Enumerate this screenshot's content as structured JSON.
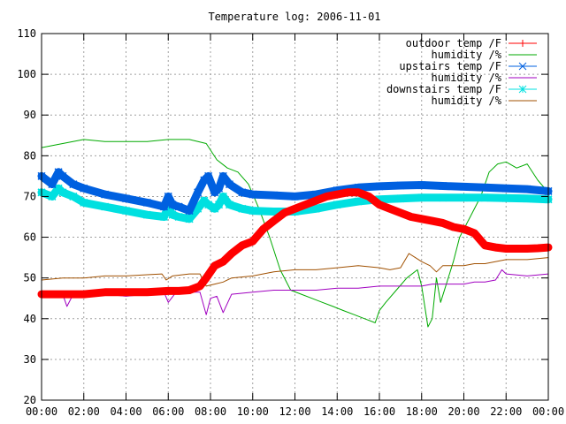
{
  "chart_data": {
    "type": "line",
    "title": "Temperature log: 2006-11-01",
    "xlabel": "",
    "ylabel": "",
    "xlim": [
      0,
      24
    ],
    "ylim": [
      20,
      110
    ],
    "grid": true,
    "legend_position": "top-right",
    "x_tick_labels": [
      "00:00",
      "02:00",
      "04:00",
      "06:00",
      "08:00",
      "10:00",
      "12:00",
      "14:00",
      "16:00",
      "18:00",
      "20:00",
      "22:00",
      "00:00"
    ],
    "y_tick_labels": [
      "20",
      "30",
      "40",
      "50",
      "60",
      "70",
      "80",
      "90",
      "100",
      "110"
    ],
    "series": [
      {
        "name": "outdoor temp /F",
        "color": "#ff0000",
        "marker": "plus",
        "x": [
          0,
          1,
          2,
          3,
          4,
          5,
          6,
          6.5,
          7,
          7.5,
          7.8,
          8.2,
          8.6,
          9,
          9.5,
          10,
          10.5,
          11,
          11.5,
          12,
          12.5,
          13,
          13.5,
          14,
          14.5,
          15,
          15.5,
          16,
          16.5,
          17,
          17.5,
          18,
          18.5,
          19,
          19.5,
          20,
          20.5,
          21,
          21.5,
          22,
          22.5,
          23,
          23.5,
          24
        ],
        "values": [
          46,
          46,
          46,
          46.5,
          46.5,
          46.5,
          46.8,
          46.8,
          47,
          48,
          50,
          53,
          54,
          56,
          58,
          59,
          62,
          64,
          66,
          67,
          68,
          69,
          70,
          70.5,
          71,
          71,
          70,
          68,
          67,
          66,
          65,
          64.5,
          64,
          63.5,
          62.5,
          62,
          61,
          58,
          57.5,
          57.2,
          57.2,
          57.2,
          57.3,
          57.5
        ]
      },
      {
        "name": "humidity /%",
        "color": "#00aa00",
        "x": [
          0,
          1,
          2,
          3,
          4,
          5,
          6,
          7,
          7.8,
          8.3,
          8.8,
          9.3,
          9.8,
          10.3,
          10.8,
          11.3,
          11.8,
          12.3,
          12.8,
          13.3,
          13.8,
          14.3,
          14.8,
          15.3,
          15.8,
          16,
          16.3,
          16.8,
          17.3,
          17.8,
          18,
          18.3,
          18.5,
          18.7,
          18.9,
          19.2,
          19.5,
          19.8,
          20.3,
          20.8,
          21.2,
          21.6,
          22,
          22.5,
          23,
          23.5,
          24
        ],
        "values": [
          82,
          83,
          84,
          83.5,
          83.5,
          83.5,
          84,
          84,
          83,
          79,
          77,
          76,
          73,
          67,
          60,
          52,
          47,
          46,
          45,
          44,
          43,
          42,
          41,
          40,
          39,
          42,
          44,
          47,
          50,
          52,
          48,
          38,
          40,
          50,
          44,
          49,
          54,
          60,
          65,
          70,
          76,
          78,
          78.5,
          77,
          78,
          74,
          71
        ]
      },
      {
        "name": "upstairs temp /F",
        "color": "#0060e0",
        "marker": "cross",
        "x": [
          0,
          0.5,
          0.8,
          1,
          1.5,
          2,
          3,
          4,
          5,
          5.8,
          6,
          6.2,
          6.5,
          7,
          7.4,
          7.7,
          7.9,
          8.2,
          8.4,
          8.6,
          8.9,
          9.5,
          10,
          11,
          12,
          13,
          14,
          15,
          16,
          17,
          18,
          19,
          20,
          21,
          22,
          23,
          24
        ],
        "values": [
          75,
          73,
          76,
          75,
          73,
          72,
          70.5,
          69.5,
          68.5,
          67.5,
          70,
          68,
          67.5,
          66.5,
          71,
          74,
          75,
          71,
          72,
          75,
          73,
          71,
          70.5,
          70.3,
          70,
          70.5,
          71.5,
          72.2,
          72.5,
          72.7,
          72.8,
          72.6,
          72.4,
          72.2,
          72,
          71.8,
          71.3
        ]
      },
      {
        "name": "humidity /%",
        "color": "#a000c0",
        "x": [
          0,
          0.5,
          1,
          1.2,
          1.5,
          2,
          3,
          4,
          5,
          5.8,
          6,
          6.3,
          7,
          7.5,
          7.8,
          8,
          8.3,
          8.6,
          9,
          10,
          11,
          12,
          13,
          14,
          15,
          16,
          17,
          17.5,
          18,
          18.5,
          19,
          19.5,
          20,
          20.5,
          21,
          21.5,
          21.8,
          22,
          23,
          24
        ],
        "values": [
          46,
          45.5,
          46,
          43,
          46,
          46,
          46,
          45.5,
          46,
          46.5,
          44,
          46,
          46.5,
          46.5,
          41,
          45,
          45.5,
          41.5,
          46,
          46.5,
          47,
          47,
          47,
          47.5,
          47.5,
          48,
          48,
          48,
          48,
          48.5,
          48.5,
          48.5,
          48.5,
          49,
          49,
          49.5,
          52,
          51,
          50.5,
          51
        ]
      },
      {
        "name": "downstairs temp /F",
        "color": "#00e0e0",
        "marker": "star",
        "x": [
          0,
          0.5,
          0.8,
          1,
          1.5,
          2,
          3,
          4,
          5,
          5.8,
          6,
          6.2,
          6.5,
          7,
          7.4,
          7.7,
          7.9,
          8.2,
          8.4,
          8.6,
          8.9,
          9.5,
          10,
          11,
          12,
          13,
          14,
          15,
          16,
          17,
          18,
          19,
          20,
          21,
          22,
          23,
          24
        ],
        "values": [
          71,
          70,
          72,
          71,
          70,
          68.5,
          67.5,
          66.5,
          65.5,
          65,
          67.5,
          65.5,
          65,
          64.5,
          67,
          69,
          68,
          67,
          68,
          70,
          68,
          67,
          66.5,
          66.3,
          66.3,
          67,
          68,
          68.8,
          69.3,
          69.5,
          69.7,
          69.7,
          69.7,
          69.7,
          69.6,
          69.5,
          69.3
        ]
      },
      {
        "name": "humidity /%",
        "color": "#a05000",
        "x": [
          0,
          1,
          2,
          3,
          4,
          5,
          5.7,
          5.9,
          6.2,
          7,
          7.5,
          7.8,
          8.2,
          8.6,
          9,
          10,
          11,
          12,
          13,
          14,
          15,
          16,
          16.5,
          17,
          17.4,
          17.7,
          18,
          18.4,
          18.7,
          19,
          20,
          20.5,
          21,
          22,
          23,
          24
        ],
        "values": [
          49.5,
          50,
          50,
          50.5,
          50.5,
          50.8,
          51,
          49.5,
          50.5,
          51,
          51,
          48,
          48.5,
          49,
          50,
          50.5,
          51.5,
          52,
          52,
          52.5,
          53,
          52.5,
          52,
          52.5,
          56,
          55,
          54,
          53,
          51.5,
          53,
          53,
          53.5,
          53.5,
          54.5,
          54.5,
          55
        ]
      }
    ]
  }
}
